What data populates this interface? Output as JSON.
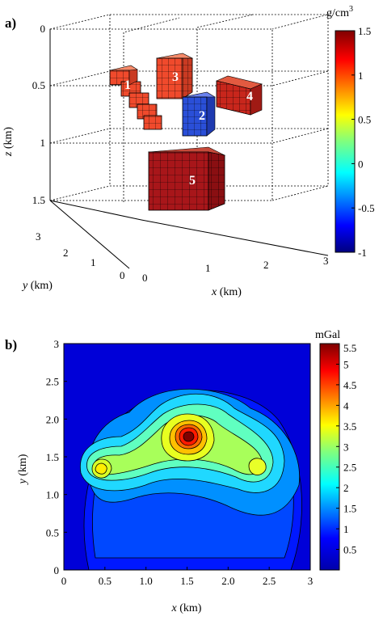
{
  "chart_data": [
    {
      "panel_label": "a)",
      "type": "3d-voxel",
      "xlabel_var": "x",
      "xlabel_unit": " (km)",
      "ylabel_var": "y",
      "ylabel_unit": " (km)",
      "zlabel_var": "z",
      "zlabel_unit": " (km)",
      "xlim": [
        0,
        3
      ],
      "ylim": [
        0,
        3
      ],
      "zlim": [
        0,
        1.5
      ],
      "xticks": [
        "0",
        "1",
        "2",
        "3"
      ],
      "yticks": [
        "0",
        "1",
        "2",
        "3"
      ],
      "zticks": [
        "0",
        "0.5",
        "1",
        "1.5"
      ],
      "colorbar": {
        "title": "g/cm",
        "title_sup": "3",
        "range": [
          -1,
          1.5
        ],
        "ticks": [
          "1.5",
          "1",
          "0.5",
          "0",
          "-0.5",
          "-1"
        ],
        "tick_values": [
          1.5,
          1,
          0.5,
          0,
          -0.5,
          -1
        ],
        "colormap": "jet"
      },
      "bodies": [
        {
          "id": "1",
          "label": "1",
          "density": 1.0,
          "color": "#f04a2c"
        },
        {
          "id": "2",
          "label": "2",
          "density": -0.8,
          "color": "#2a4fd8"
        },
        {
          "id": "3",
          "label": "3",
          "density": 1.0,
          "color": "#f04a2c"
        },
        {
          "id": "4",
          "label": "4",
          "density": 1.3,
          "color": "#c8261c"
        },
        {
          "id": "5",
          "label": "5",
          "density": 1.4,
          "color": "#a8161a"
        }
      ]
    },
    {
      "panel_label": "b)",
      "type": "contour",
      "xlabel_var": "x",
      "xlabel_unit": " (km)",
      "ylabel_var": "y",
      "ylabel_unit": " (km)",
      "xlim": [
        0,
        3
      ],
      "ylim": [
        0,
        3
      ],
      "xticks": [
        "0",
        "0.5",
        "1.0",
        "1.5",
        "2.0",
        "2.5",
        "3"
      ],
      "yticks": [
        "0",
        "0.5",
        "1.0",
        "1.5",
        "2.0",
        "2.5",
        "3"
      ],
      "colorbar": {
        "title": "mGal",
        "range": [
          0,
          5.5
        ],
        "ticks": [
          "5.5",
          "5",
          "4.5",
          "4",
          "3.5",
          "3",
          "2.5",
          "2",
          "1.5",
          "1",
          "0.5"
        ],
        "tick_values": [
          5.5,
          5,
          4.5,
          4,
          3.5,
          3,
          2.5,
          2,
          1.5,
          1,
          0.5
        ],
        "colormap": "jet"
      },
      "contour_levels": [
        0.5,
        1,
        1.5,
        2,
        2.5,
        3,
        3.5,
        4,
        4.5,
        5
      ],
      "anomalies": [
        {
          "x": 1.55,
          "y": 1.92,
          "peak_mGal": 5.5
        },
        {
          "x": 0.55,
          "y": 1.52,
          "peak_mGal": 3.5
        },
        {
          "x": 2.35,
          "y": 1.55,
          "peak_mGal": 3.2
        }
      ]
    }
  ]
}
